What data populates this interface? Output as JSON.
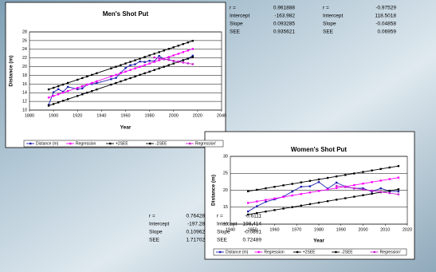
{
  "chart_data": [
    {
      "type": "line",
      "title": "Men's Shot Put",
      "x_label": "Year",
      "y_label": "Distance (m)",
      "x": [
        1896,
        1900,
        1904,
        1908,
        1912,
        1920,
        1924,
        1928,
        1932,
        1936,
        1948,
        1952,
        1956,
        1960,
        1964,
        1968,
        1972,
        1976,
        1980,
        1984,
        1988,
        1992,
        1996,
        2000,
        2004,
        2008,
        2012,
        2016
      ],
      "series": [
        {
          "name": "Distance (m)",
          "color": "#1f1fb0",
          "values": [
            11.22,
            14.1,
            14.81,
            14.21,
            15.34,
            14.81,
            14.99,
            15.87,
            16.0,
            16.2,
            17.12,
            17.41,
            18.57,
            19.68,
            20.33,
            20.54,
            21.18,
            21.05,
            21.35,
            21.26,
            22.47,
            21.7,
            21.62,
            21.29,
            21.16,
            21.51,
            21.89,
            22.52
          ]
        },
        {
          "name": "Regression",
          "color": "#ff00ff",
          "values": [
            12.89,
            13.26,
            13.63,
            14.01,
            14.38,
            15.12,
            15.5,
            15.87,
            16.24,
            16.62,
            17.74,
            18.11,
            18.48,
            18.86,
            19.23,
            19.6,
            19.98,
            20.35,
            20.72,
            21.1,
            21.47,
            21.84,
            22.22,
            22.59,
            22.96,
            23.34,
            23.71,
            24.08
          ]
        },
        {
          "name": "+2SEE",
          "color": "#000000",
          "values": [
            14.76,
            15.13,
            15.5,
            15.88,
            16.25,
            16.99,
            17.37,
            17.74,
            18.11,
            18.49,
            19.61,
            19.98,
            20.35,
            20.73,
            21.1,
            21.47,
            21.85,
            22.22,
            22.59,
            22.97,
            23.34,
            23.71,
            24.09,
            24.46,
            24.83,
            25.21,
            25.58,
            25.95
          ]
        },
        {
          "name": "-2SEE",
          "color": "#000000",
          "values": [
            11.02,
            11.39,
            11.76,
            12.14,
            12.51,
            13.25,
            13.63,
            14.0,
            14.37,
            14.75,
            15.87,
            16.24,
            16.61,
            16.99,
            17.36,
            17.73,
            18.11,
            18.48,
            18.85,
            19.23,
            19.6,
            19.97,
            20.35,
            20.72,
            21.09,
            21.47,
            21.84,
            22.21
          ]
        },
        {
          "name": "Regression'",
          "color": "#d020d0",
          "values": [
            null,
            null,
            null,
            null,
            null,
            null,
            null,
            null,
            null,
            null,
            null,
            null,
            null,
            null,
            null,
            null,
            null,
            null,
            null,
            22.12,
            21.92,
            21.73,
            21.54,
            21.34,
            21.15,
            20.95,
            20.76,
            20.57
          ]
        }
      ],
      "xlim": [
        1880,
        2040
      ],
      "xticks": [
        1880,
        1900,
        1920,
        1940,
        1960,
        1980,
        2000,
        2020,
        2040
      ],
      "ylim": [
        10,
        28
      ],
      "yticks": [
        10,
        12,
        14,
        16,
        18,
        20,
        22,
        24,
        26,
        28
      ],
      "grid": true
    },
    {
      "type": "line",
      "title": "Women's Shot Put",
      "x_label": "Year",
      "y_label": "Distance (m)",
      "x": [
        1948,
        1952,
        1956,
        1960,
        1964,
        1968,
        1972,
        1976,
        1980,
        1984,
        1988,
        1992,
        1996,
        2000,
        2004,
        2008,
        2012,
        2016
      ],
      "series": [
        {
          "name": "Distance (m)",
          "color": "#1f1fb0",
          "values": [
            13.75,
            15.28,
            16.59,
            17.32,
            18.14,
            19.61,
            21.03,
            21.16,
            22.41,
            20.48,
            22.24,
            21.06,
            20.56,
            20.56,
            19.59,
            20.56,
            19.7,
            19.63
          ]
        },
        {
          "name": "Regression",
          "color": "#ff00ff",
          "values": [
            16.26,
            16.7,
            17.14,
            17.58,
            18.02,
            18.45,
            18.89,
            19.33,
            19.77,
            20.21,
            20.65,
            21.08,
            21.52,
            21.96,
            22.4,
            22.84,
            23.28,
            23.71
          ]
        },
        {
          "name": "+2SEE",
          "color": "#000000",
          "values": [
            19.69,
            20.13,
            20.57,
            21.01,
            21.45,
            21.88,
            22.32,
            22.76,
            23.2,
            23.64,
            24.08,
            24.51,
            24.95,
            25.39,
            25.83,
            26.27,
            26.71,
            27.14
          ]
        },
        {
          "name": "-2SEE",
          "color": "#000000",
          "values": [
            12.83,
            13.27,
            13.71,
            14.15,
            14.59,
            15.02,
            15.46,
            15.9,
            16.34,
            16.78,
            17.22,
            17.65,
            18.09,
            18.53,
            18.97,
            19.41,
            19.85,
            20.28
          ]
        },
        {
          "name": "Regression'",
          "color": "#d020d0",
          "values": [
            null,
            null,
            null,
            null,
            null,
            null,
            null,
            null,
            null,
            null,
            21.28,
            20.93,
            20.57,
            20.21,
            19.86,
            19.5,
            19.15,
            18.79
          ]
        }
      ],
      "xlim": [
        1940,
        2020
      ],
      "xticks": [
        1940,
        1950,
        1960,
        1970,
        1980,
        1990,
        2000,
        2010,
        2020
      ],
      "ylim": [
        10,
        30
      ],
      "yticks": [
        10,
        15,
        20,
        25,
        30
      ],
      "grid": true
    }
  ],
  "stats": [
    {
      "labels": [
        "r =",
        "Intercept",
        "Slope",
        "SEE"
      ],
      "values": [
        0.961888,
        -163.982,
        0.093285,
        0.935621
      ]
    },
    {
      "labels": [
        "r =",
        "Intercept",
        "Slope",
        "SEE"
      ],
      "values": [
        -0.97529,
        118.5018,
        -0.04858,
        0.06959
      ]
    },
    {
      "labels": [
        "r =",
        "Intercept",
        "Slope",
        "SEE"
      ],
      "values": [
        0.76428,
        -197.28,
        0.10962,
        1.71702
      ]
    },
    {
      "labels": [
        "r =",
        "Intercept",
        "Slope",
        "SEE"
      ],
      "values": [
        -0.6111,
        198.414,
        -0.0891,
        0.72489
      ]
    }
  ]
}
